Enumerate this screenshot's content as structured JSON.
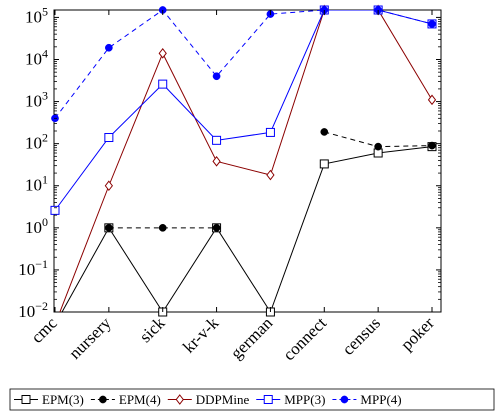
{
  "chart_data": {
    "type": "line",
    "title": "",
    "xlabel": "",
    "ylabel": "",
    "yscale": "log",
    "ylim": [
      0.01,
      150000
    ],
    "yticks": [
      {
        "value": 0.01,
        "base": "10",
        "exp": "−2"
      },
      {
        "value": 0.1,
        "base": "10",
        "exp": "−1"
      },
      {
        "value": 1,
        "base": "10",
        "exp": "0"
      },
      {
        "value": 10,
        "base": "10",
        "exp": "1"
      },
      {
        "value": 100,
        "base": "10",
        "exp": "2"
      },
      {
        "value": 1000,
        "base": "10",
        "exp": "3"
      },
      {
        "value": 10000,
        "base": "10",
        "exp": "4"
      },
      {
        "value": 100000,
        "base": "10",
        "exp": "5"
      }
    ],
    "categories": [
      "cmc",
      "nursery",
      "sick",
      "kr-v-k",
      "german",
      "connect",
      "census",
      "poker"
    ],
    "legend_position": "bottom",
    "series": [
      {
        "name": "EPM(3)",
        "color": "#000000",
        "dashed": false,
        "marker": "open-square",
        "values": [
          0.005,
          1,
          0.01,
          1,
          0.01,
          33,
          60,
          85
        ]
      },
      {
        "name": "EPM(4)",
        "color": "#000000",
        "dashed": true,
        "marker": "filled-circle",
        "values": [
          null,
          1,
          1,
          1,
          null,
          190,
          85,
          90
        ]
      },
      {
        "name": "DDPMine",
        "color": "#8b0000",
        "dashed": false,
        "marker": "open-diamond",
        "values": [
          0.005,
          10,
          14000,
          38,
          18,
          150000,
          150000,
          1100
        ]
      },
      {
        "name": "MPP(3)",
        "color": "#0000ff",
        "dashed": false,
        "marker": "open-square",
        "values": [
          2.6,
          140,
          2600,
          120,
          185,
          150000,
          150000,
          70000
        ]
      },
      {
        "name": "MPP(4)",
        "color": "#0000ff",
        "dashed": true,
        "marker": "filled-circle",
        "values": [
          400,
          19000,
          150000,
          4000,
          120000,
          150000,
          150000,
          70000
        ]
      }
    ]
  }
}
